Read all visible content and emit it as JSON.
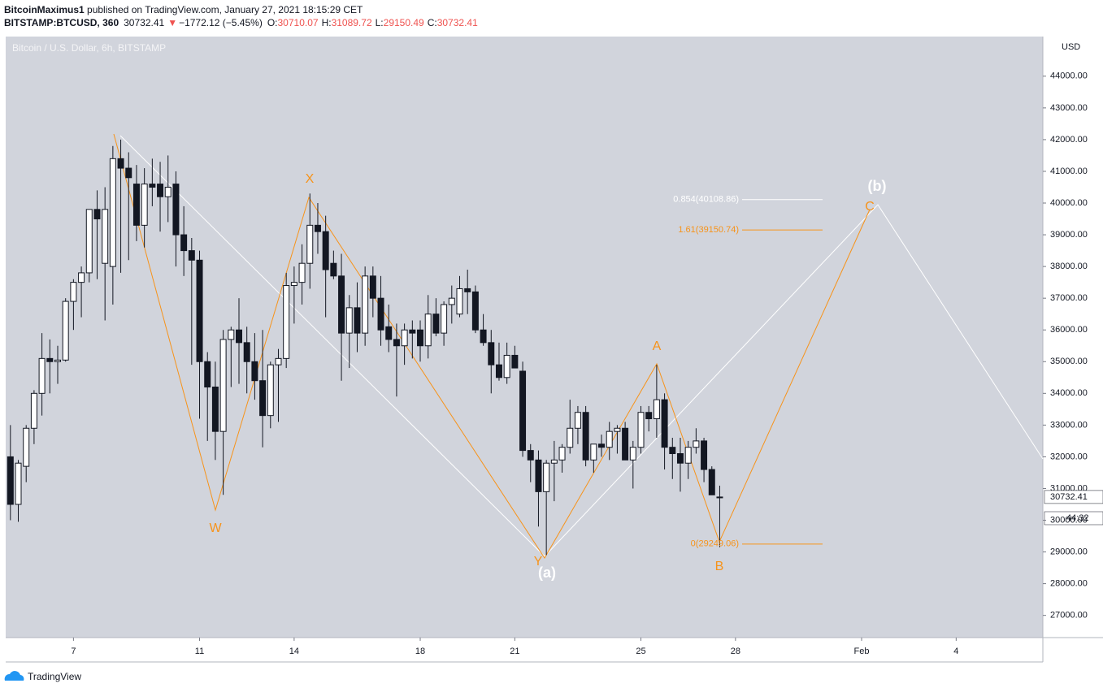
{
  "header": {
    "author": "BitcoinMaximus1",
    "published": " published on TradingView.com, January 27, 2021 18:15:29 CET",
    "symbol": "BITSTAMP:BTCUSD, 360",
    "last": "30732.41",
    "arrow": "▼",
    "change": "−1772.12 (−5.45%)",
    "o_label": "O:",
    "o": "30710.07",
    "h_label": "H:",
    "h": "31089.72",
    "l_label": "L:",
    "l": "29150.49",
    "c_label": "C:",
    "c": "30732.41"
  },
  "footer": {
    "brand": "TradingView"
  },
  "chart_data": {
    "type": "candlestick",
    "title": "Bitcoin / U.S. Dollar, 6h, BITSTAMP",
    "unit": "USD",
    "countdown": "44:32",
    "up_color": "#ffffff",
    "down_color": "#131722",
    "grid": false,
    "open": [
      32000,
      30500,
      31700,
      32900,
      34000,
      35100,
      35000,
      35050,
      36900,
      37500,
      37800,
      39800,
      38100,
      38000,
      41400,
      41100,
      40600,
      39300,
      40600,
      40600,
      40200,
      40600,
      39000,
      38500,
      38200,
      35000,
      34200,
      32800,
      35700,
      36000,
      35600,
      35000,
      34400,
      33300,
      34900,
      35100,
      37400,
      37500,
      38100,
      39300,
      39100,
      38100,
      37700,
      35900,
      36700,
      35900,
      37700,
      37000,
      36100,
      35700,
      35500,
      36000,
      36000,
      35500,
      36500,
      35900,
      36800,
      36500,
      37300,
      37200,
      36000,
      35600,
      34900,
      34500,
      35200,
      34700,
      32200,
      31900,
      30900,
      31800,
      31900,
      32300,
      32900,
      33400,
      31900,
      32400,
      32300,
      32800,
      32900,
      31900,
      32300,
      33400,
      33200,
      33800,
      32300,
      32100,
      31800,
      32300,
      32500,
      31600,
      30710.07
    ],
    "high": [
      33000,
      31900,
      33000,
      34100,
      35900,
      35700,
      35500,
      37000,
      37600,
      38000,
      39800,
      40400,
      40500,
      41800,
      42000,
      41600,
      41200,
      41100,
      41400,
      41300,
      41500,
      41000,
      39900,
      38900,
      38500,
      35300,
      35000,
      36000,
      36100,
      37000,
      36100,
      35900,
      36000,
      35000,
      35400,
      37800,
      38000,
      38700,
      40300,
      40000,
      39600,
      38500,
      38400,
      37100,
      37500,
      38000,
      38000,
      37700,
      36800,
      36200,
      36200,
      36300,
      36300,
      37100,
      37000,
      36900,
      37400,
      37700,
      37900,
      37400,
      36500,
      36000,
      35600,
      35600,
      35500,
      35000,
      32400,
      32200,
      31900,
      32500,
      32400,
      33800,
      33600,
      33600,
      32300,
      32700,
      33100,
      33000,
      33100,
      32500,
      33600,
      33600,
      34900,
      34000,
      32600,
      32600,
      32500,
      32900,
      32600,
      31700,
      31089.72
    ],
    "low": [
      30000,
      29950,
      31200,
      32400,
      33300,
      34000,
      34300,
      35000,
      36000,
      36400,
      37500,
      37600,
      36300,
      36800,
      37800,
      38200,
      38800,
      38600,
      39900,
      39100,
      39400,
      38000,
      37700,
      34900,
      33200,
      32500,
      31900,
      30800,
      34200,
      34300,
      34000,
      33800,
      32300,
      32900,
      33100,
      34800,
      36200,
      36800,
      37300,
      38400,
      36400,
      37600,
      34400,
      34800,
      35300,
      35500,
      36400,
      35500,
      35300,
      33900,
      34900,
      35100,
      35000,
      35100,
      35800,
      35500,
      36200,
      36400,
      36500,
      35900,
      35500,
      34000,
      34400,
      34300,
      34800,
      32000,
      31200,
      29800,
      28900,
      30600,
      31500,
      32100,
      32400,
      31700,
      31500,
      32000,
      31900,
      32100,
      31900,
      31000,
      32100,
      32800,
      32600,
      31600,
      31300,
      30900,
      31300,
      32100,
      31200,
      30800,
      29150.49
    ],
    "close": [
      30500,
      31800,
      32900,
      34000,
      35100,
      35000,
      35050,
      36900,
      37500,
      37800,
      39800,
      39500,
      39800,
      41400,
      41100,
      40800,
      39300,
      40600,
      40500,
      40200,
      40500,
      39000,
      38500,
      38200,
      35000,
      34200,
      32800,
      35700,
      36000,
      35600,
      35000,
      34400,
      33300,
      34900,
      35100,
      37400,
      37500,
      38100,
      39300,
      39100,
      37900,
      37700,
      35900,
      36700,
      35900,
      37700,
      37000,
      36000,
      35700,
      35500,
      36000,
      35900,
      35500,
      36500,
      35900,
      36800,
      37000,
      37300,
      37200,
      36000,
      35600,
      34900,
      34500,
      35200,
      34800,
      32200,
      31900,
      30900,
      31800,
      31900,
      32300,
      32900,
      33400,
      31900,
      32400,
      32300,
      32800,
      32900,
      31900,
      32300,
      33400,
      33200,
      33800,
      32300,
      32100,
      31800,
      32300,
      32500,
      31600,
      30800,
      30732.41
    ],
    "xlim": [
      -0.6,
      131
    ],
    "ylim": [
      26300,
      45250
    ],
    "xticks": [
      {
        "value": 8,
        "label": "7"
      },
      {
        "value": 24,
        "label": "11"
      },
      {
        "value": 36,
        "label": "14"
      },
      {
        "value": 52,
        "label": "18"
      },
      {
        "value": 64,
        "label": "21"
      },
      {
        "value": 80,
        "label": "25"
      },
      {
        "value": 92,
        "label": "28"
      },
      {
        "value": 108,
        "label": "Feb"
      },
      {
        "value": 120,
        "label": "4"
      }
    ],
    "yticks": [
      {
        "value": 27000,
        "label": "27000.00"
      },
      {
        "value": 28000,
        "label": "28000.00"
      },
      {
        "value": 29000,
        "label": "29000.00"
      },
      {
        "value": 30000,
        "label": "30000.00"
      },
      {
        "value": 31000,
        "label": "31000.00"
      },
      {
        "value": 32000,
        "label": "32000.00"
      },
      {
        "value": 33000,
        "label": "33000.00"
      },
      {
        "value": 34000,
        "label": "34000.00"
      },
      {
        "value": 35000,
        "label": "35000.00"
      },
      {
        "value": 36000,
        "label": "36000.00"
      },
      {
        "value": 37000,
        "label": "37000.00"
      },
      {
        "value": 38000,
        "label": "38000.00"
      },
      {
        "value": 39000,
        "label": "39000.00"
      },
      {
        "value": 40000,
        "label": "40000.00"
      },
      {
        "value": 41000,
        "label": "41000.00"
      },
      {
        "value": 42000,
        "label": "42000.00"
      },
      {
        "value": 43000,
        "label": "43000.00"
      },
      {
        "value": 44000,
        "label": "44000.00"
      }
    ],
    "fib_levels": [
      {
        "value": 40108.86,
        "label": "0.854(40108.86)",
        "color": "#ffffff"
      },
      {
        "value": 39150.74,
        "label": "1.61(39150.74)",
        "color": "#f7931a"
      },
      {
        "value": 29249.06,
        "label": "0(29249.06)",
        "color": "#f7931a"
      }
    ],
    "annotations": [
      "W",
      "X",
      "Y",
      "A",
      "B",
      "C",
      "(a)",
      "(b)"
    ]
  }
}
